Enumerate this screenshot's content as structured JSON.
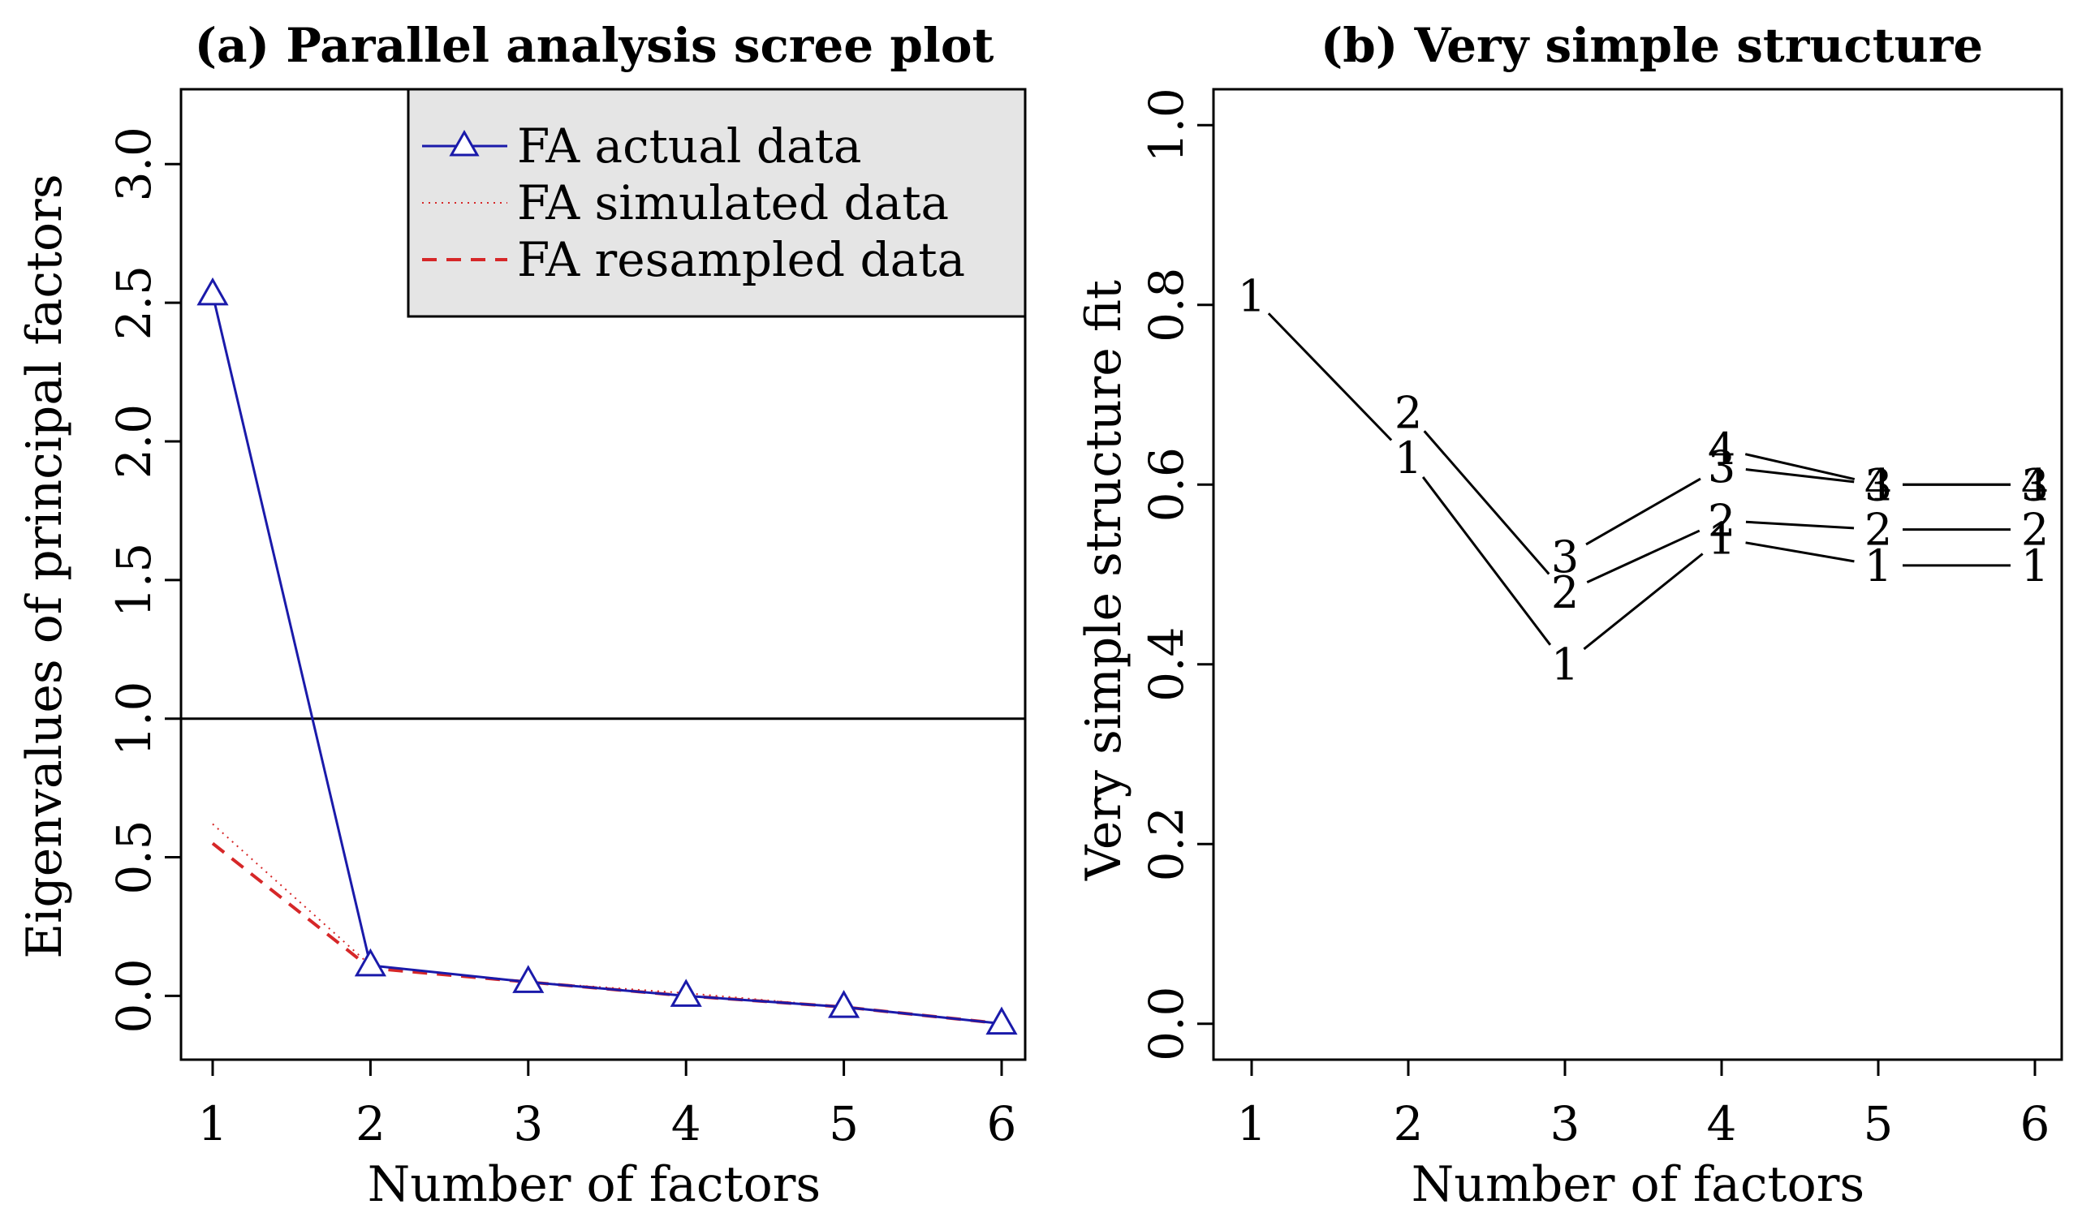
{
  "chart_data": [
    {
      "type": "line",
      "title": "(a) Parallel analysis scree plot",
      "xlabel": "Number of factors",
      "ylabel": "Eigenvalues of principal factors",
      "x": [
        1,
        2,
        3,
        4,
        5,
        6
      ],
      "xticks": [
        "1",
        "2",
        "3",
        "4",
        "5",
        "6"
      ],
      "yticks": [
        "0.0",
        "0.5",
        "1.0",
        "1.5",
        "2.0",
        "2.5",
        "3.0"
      ],
      "ylim": [
        -0.23,
        3.27
      ],
      "reference_line": 1.0,
      "series": [
        {
          "name": "FA actual data",
          "style": "solid-triangle",
          "color": "#1a1aaa",
          "values": [
            2.53,
            0.11,
            0.05,
            0.0,
            -0.04,
            -0.1
          ]
        },
        {
          "name": "FA simulated data",
          "style": "dotted",
          "color": "#d62728",
          "values": [
            0.62,
            0.11,
            0.05,
            0.01,
            -0.04,
            -0.1
          ]
        },
        {
          "name": "FA resampled data",
          "style": "dashed",
          "color": "#d62728",
          "values": [
            0.55,
            0.1,
            0.05,
            0.0,
            -0.04,
            -0.1
          ]
        }
      ],
      "legend": {
        "position": "top-right",
        "background": "#e5e5e5"
      }
    },
    {
      "type": "line",
      "title": "(b) Very simple structure",
      "xlabel": "Number of factors",
      "ylabel": "Very simple structure fit",
      "x": [
        1,
        2,
        3,
        4,
        5,
        6
      ],
      "xticks": [
        "1",
        "2",
        "3",
        "4",
        "5",
        "6"
      ],
      "yticks": [
        "0.0",
        "0.2",
        "0.4",
        "0.6",
        "0.8",
        "1.0"
      ],
      "ylim": [
        -0.04,
        1.04
      ],
      "series": [
        {
          "name": "complexity 1",
          "label": "1",
          "values": [
            0.81,
            0.63,
            0.4,
            0.54,
            0.51,
            0.51
          ]
        },
        {
          "name": "complexity 2",
          "label": "2",
          "values": [
            null,
            0.68,
            0.48,
            0.56,
            0.55,
            0.55
          ]
        },
        {
          "name": "complexity 3",
          "label": "3",
          "values": [
            null,
            null,
            0.52,
            0.62,
            0.6,
            0.6
          ]
        },
        {
          "name": "complexity 4",
          "label": "4",
          "values": [
            null,
            null,
            null,
            0.64,
            0.6,
            0.6
          ]
        }
      ]
    }
  ]
}
